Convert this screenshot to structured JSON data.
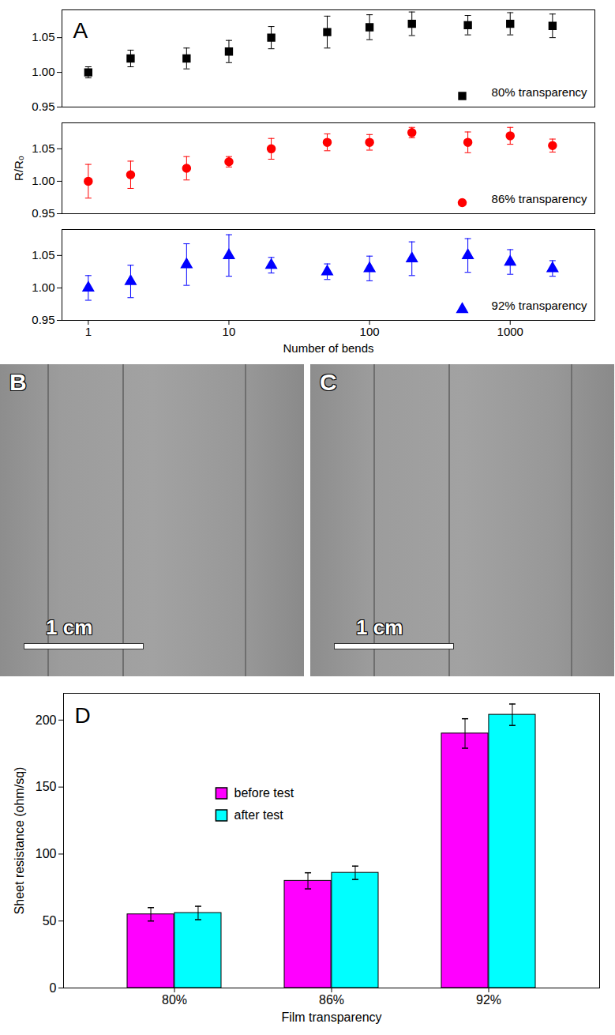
{
  "chart_data": [
    {
      "type": "scatter",
      "panel": "A",
      "log": "x",
      "tick_labels": "y",
      "xlim": [
        0.65,
        4000
      ],
      "xticks": [
        1,
        10,
        100,
        1000
      ],
      "ylim": [
        0.95,
        1.09
      ],
      "yticks": [
        {
          "value": 0.95,
          "label": "0.95"
        },
        {
          "value": 1,
          "label": "1.00"
        },
        {
          "value": 1.05,
          "label": "1.05"
        }
      ],
      "legend": "lower right",
      "x": [
        1,
        2,
        5,
        10,
        20,
        50,
        100,
        200,
        500,
        1000,
        2000
      ],
      "series": [
        {
          "name": "80% transparency",
          "color": "#000000",
          "marker": "square",
          "values": [
            1.0,
            1.02,
            1.02,
            1.03,
            1.05,
            1.058,
            1.065,
            1.07,
            1.068,
            1.07,
            1.067
          ],
          "errors": [
            0.008,
            0.012,
            0.015,
            0.016,
            0.016,
            0.023,
            0.018,
            0.017,
            0.014,
            0.016,
            0.017
          ]
        }
      ]
    },
    {
      "type": "scatter",
      "log": "x",
      "tick_labels": "y",
      "y_label": "R/R₀",
      "xlim": [
        0.65,
        4000
      ],
      "xticks": [
        1,
        10,
        100,
        1000
      ],
      "ylim": [
        0.95,
        1.09
      ],
      "yticks": [
        {
          "value": 0.95,
          "label": "0.95"
        },
        {
          "value": 1,
          "label": "1.00"
        },
        {
          "value": 1.05,
          "label": "1.05"
        }
      ],
      "legend": "lower right",
      "x": [
        1,
        2,
        5,
        10,
        20,
        50,
        100,
        200,
        500,
        1000,
        2000
      ],
      "series": [
        {
          "name": "86% transparency",
          "color": "#ff0000",
          "marker": "circle",
          "values": [
            1.0,
            1.01,
            1.02,
            1.03,
            1.05,
            1.06,
            1.06,
            1.075,
            1.06,
            1.07,
            1.055
          ],
          "errors": [
            0.026,
            0.021,
            0.018,
            0.008,
            0.016,
            0.013,
            0.012,
            0.008,
            0.016,
            0.013,
            0.01
          ]
        }
      ]
    },
    {
      "type": "scatter",
      "log": "x",
      "x_label": "Number of bends",
      "xlim": [
        0.65,
        4000
      ],
      "xticks": [
        1,
        10,
        100,
        1000
      ],
      "ylim": [
        0.95,
        1.09
      ],
      "yticks": [
        {
          "value": 0.95,
          "label": "0.95"
        },
        {
          "value": 1,
          "label": "1.00"
        },
        {
          "value": 1.05,
          "label": "1.05"
        }
      ],
      "legend": "lower right",
      "x": [
        1,
        2,
        5,
        10,
        20,
        50,
        100,
        200,
        500,
        1000,
        2000
      ],
      "series": [
        {
          "name": "92% transparency",
          "color": "#0000ff",
          "marker": "triangle",
          "values": [
            1.0,
            1.01,
            1.036,
            1.05,
            1.035,
            1.025,
            1.03,
            1.045,
            1.05,
            1.04,
            1.03
          ],
          "errors": [
            0.019,
            0.025,
            0.032,
            0.032,
            0.012,
            0.012,
            0.019,
            0.026,
            0.026,
            0.019,
            0.012
          ]
        }
      ]
    },
    {
      "type": "bar",
      "panel": "D",
      "x_label": "Film transparency",
      "y_label": "Sheet resistance (ohm/sq)",
      "categories": [
        "80%",
        "86%",
        "92%"
      ],
      "ylim": [
        0,
        220
      ],
      "yticks": [
        0,
        50,
        100,
        150,
        200
      ],
      "legend": "center left",
      "series": [
        {
          "name": "before test",
          "color": "#ff00ff",
          "values": [
            55,
            80,
            190
          ],
          "errors": [
            5,
            6,
            11
          ]
        },
        {
          "name": "after test",
          "color": "#00ffff",
          "values": [
            56,
            86,
            204
          ],
          "errors": [
            5,
            5,
            8
          ]
        }
      ]
    }
  ],
  "photos": [
    {
      "panel": "B",
      "scale_bar": "1 cm"
    },
    {
      "panel": "C",
      "scale_bar": "1 cm"
    }
  ]
}
